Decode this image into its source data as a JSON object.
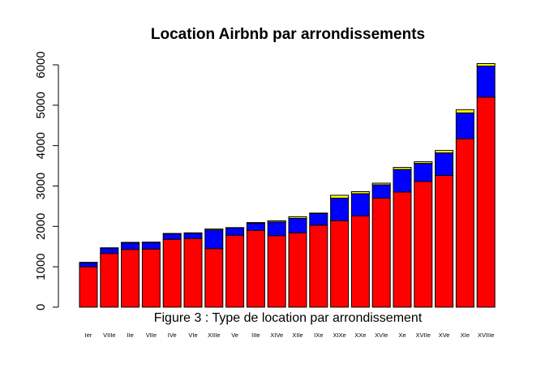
{
  "chart_data": {
    "type": "bar",
    "stacked": true,
    "title": "Location Airbnb par arrondissements",
    "caption": "Figure 3 : Type de location par arrondissement",
    "xlabel": "",
    "ylabel": "",
    "ylim": [
      0,
      6000
    ],
    "yticks": [
      0,
      1000,
      2000,
      3000,
      4000,
      5000,
      6000
    ],
    "grid": false,
    "legend": "none",
    "categories": [
      "Ier",
      "VIIIe",
      "IIe",
      "VIIe",
      "IVe",
      "VIe",
      "XIIIe",
      "Ve",
      "IIIe",
      "XIVe",
      "XIIe",
      "IXe",
      "XIXe",
      "XXe",
      "XVIe",
      "Xe",
      "XVIIe",
      "XVe",
      "XIe",
      "XVIIIe"
    ],
    "series": [
      {
        "color": "#ff0000",
        "values": [
          1000,
          1330,
          1430,
          1440,
          1680,
          1700,
          1450,
          1780,
          1900,
          1770,
          1840,
          2030,
          2140,
          2260,
          2700,
          2850,
          3110,
          3260,
          4170,
          5200
        ]
      },
      {
        "color": "#0000ff",
        "values": [
          100,
          130,
          160,
          160,
          130,
          130,
          460,
          180,
          180,
          340,
          360,
          290,
          560,
          550,
          330,
          560,
          450,
          560,
          640,
          770
        ]
      },
      {
        "color": "#ffff00",
        "values": [
          10,
          10,
          15,
          10,
          15,
          10,
          25,
          10,
          15,
          30,
          40,
          10,
          70,
          50,
          40,
          50,
          40,
          60,
          80,
          60
        ]
      }
    ]
  }
}
